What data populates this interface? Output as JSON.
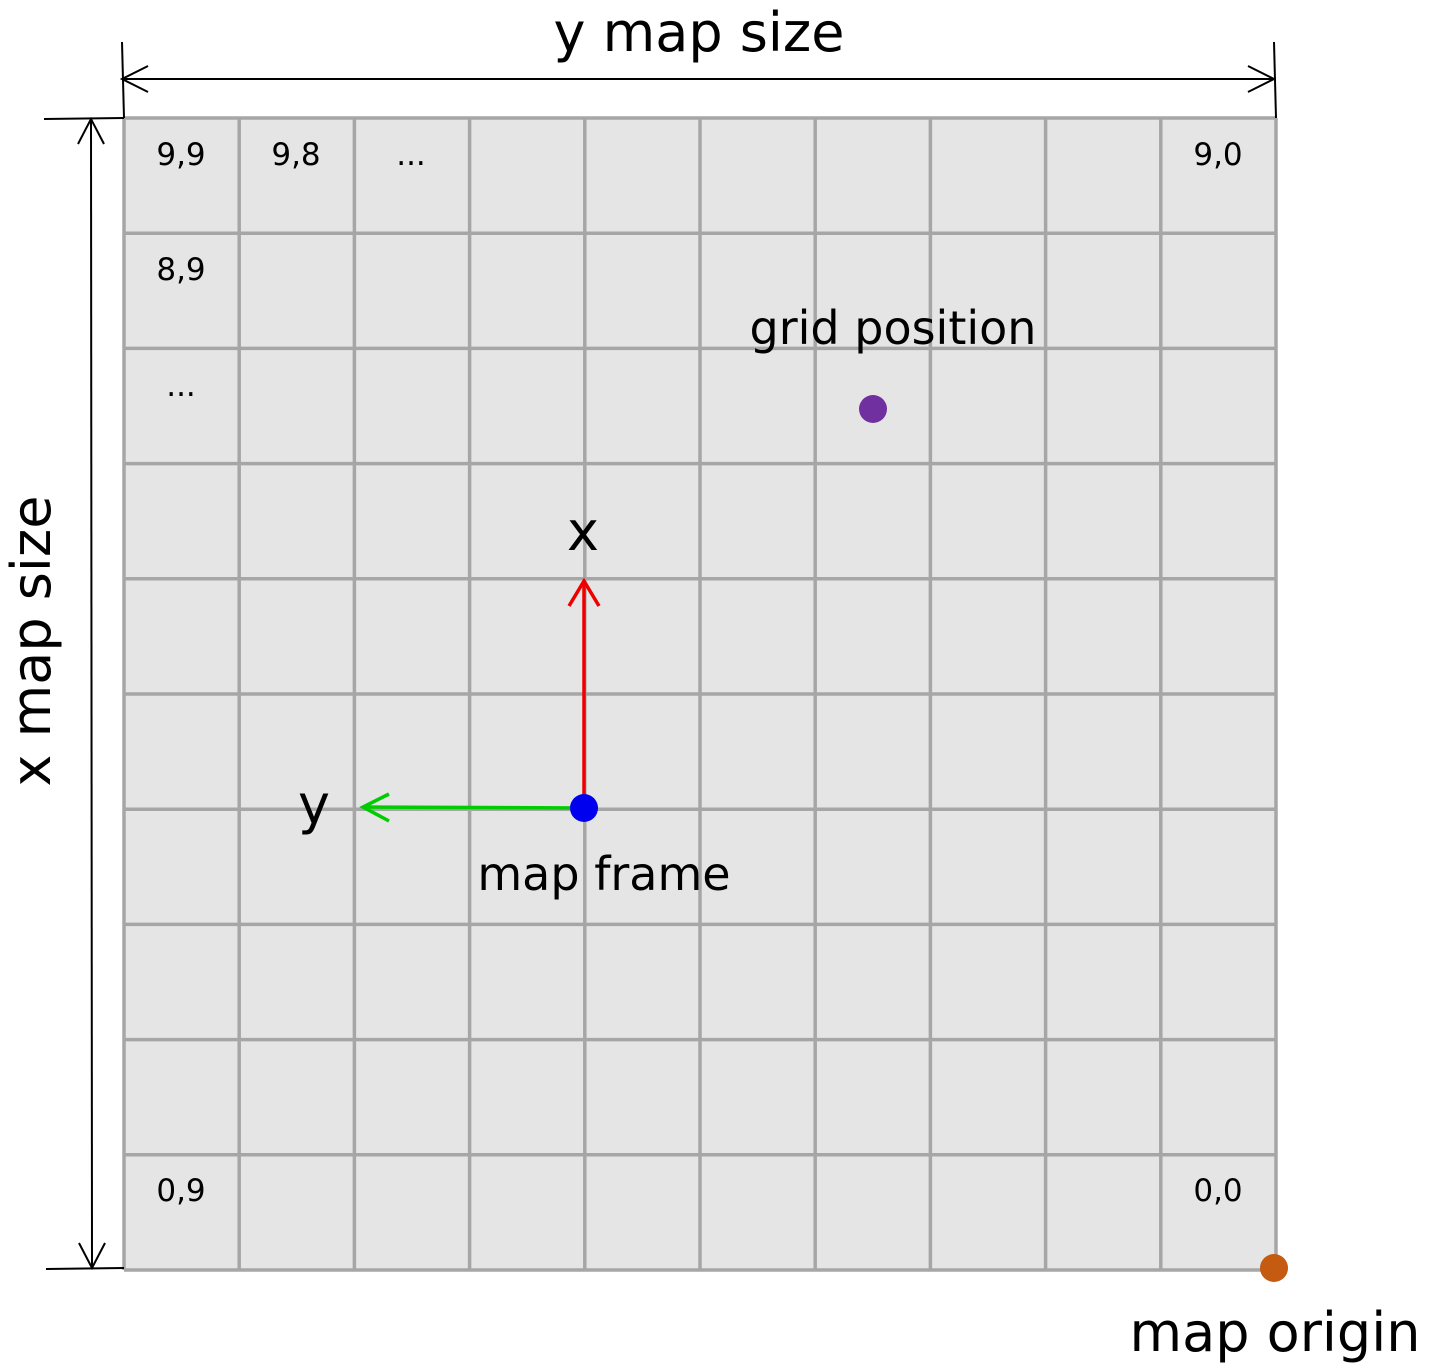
{
  "labels": {
    "y_map_size": "y map size",
    "x_map_size": "x map size",
    "grid_position": "grid position",
    "x_axis": "x",
    "y_axis": "y",
    "map_frame": "map frame",
    "map_origin": "map origin"
  },
  "cell_labels": {
    "r9c9": "9,9",
    "r9c8": "9,8",
    "r9_ellipsis": "...",
    "r9c0": "9,0",
    "r8c9": "8,9",
    "col9_ellipsis": "...",
    "r0c9": "0,9",
    "r0c0": "0,0"
  },
  "grid": {
    "rows": 10,
    "cols": 10
  },
  "colors": {
    "grid_fill": "#e5e5e5",
    "grid_line": "#a6a6a6",
    "x_axis_arrow": "#ee0000",
    "y_axis_arrow": "#00cc00",
    "map_frame_dot": "#0000ee",
    "grid_position_dot": "#7030a0",
    "map_origin_dot": "#c55a11"
  }
}
